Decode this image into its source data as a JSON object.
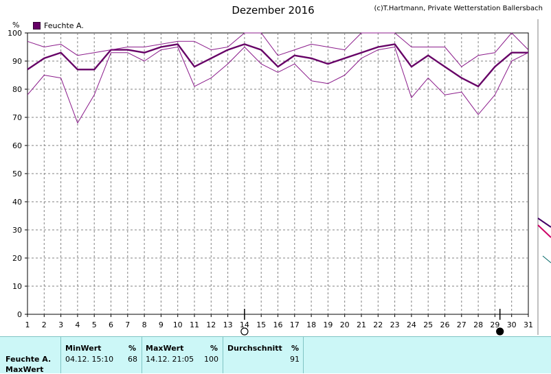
{
  "title": "Dezember 2016",
  "credit": "(c)T.Hartmann, Private Wetterstation Ballersbach",
  "legend_label": "Feuchte A.",
  "unit": "%",
  "colors": {
    "main": "#660066",
    "envelope": "#8a1a8a",
    "grid": "#808080",
    "panel": "#ccf7f7"
  },
  "chart_data": {
    "type": "line",
    "title": "Dezember 2016",
    "ylabel": "%",
    "xlabel": "",
    "ylim": [
      0,
      100
    ],
    "yticks": [
      0,
      10,
      20,
      30,
      40,
      50,
      60,
      70,
      80,
      90,
      100
    ],
    "xlim": [
      1,
      31
    ],
    "x": [
      1,
      2,
      3,
      4,
      5,
      6,
      7,
      8,
      9,
      10,
      11,
      12,
      13,
      14,
      15,
      16,
      17,
      18,
      19,
      20,
      21,
      22,
      23,
      24,
      25,
      26,
      27,
      28,
      29,
      30,
      31
    ],
    "grid": true,
    "series": [
      {
        "name": "Feuchte A.",
        "role": "average",
        "values": [
          87,
          91,
          93,
          87,
          87,
          94,
          94,
          93,
          95,
          96,
          88,
          91,
          94,
          96,
          94,
          88,
          92,
          91,
          89,
          91,
          93,
          95,
          96,
          88,
          92,
          88,
          84,
          81,
          88,
          93,
          93
        ]
      },
      {
        "role": "max",
        "values": [
          97,
          95,
          96,
          92,
          93,
          94,
          95,
          95,
          96,
          97,
          97,
          94,
          95,
          100,
          100,
          92,
          94,
          96,
          95,
          94,
          100,
          100,
          100,
          95,
          95,
          95,
          88,
          92,
          93,
          100,
          94
        ]
      },
      {
        "role": "min",
        "values": [
          78,
          85,
          84,
          68,
          78,
          93,
          93,
          90,
          94,
          95,
          81,
          84,
          89,
          95,
          89,
          86,
          89,
          83,
          82,
          85,
          91,
          94,
          95,
          77,
          84,
          78,
          79,
          71,
          78,
          90,
          93
        ]
      }
    ],
    "moon_markers": [
      {
        "x": 14,
        "phase": "full"
      },
      {
        "x": 29.3,
        "phase": "new"
      }
    ]
  },
  "table": {
    "row_header": "Feuchte A.",
    "row_subheader": "MaxWert",
    "minwert": {
      "header": "MinWert",
      "unit": "%",
      "datetime": "04.12.  15:10",
      "value": "68"
    },
    "maxwert": {
      "header": "MaxWert",
      "unit": "%",
      "datetime": "14.12.  21:05",
      "value": "100"
    },
    "durchschnitt": {
      "header": "Durchschnitt",
      "unit": "%",
      "value": "91"
    }
  }
}
